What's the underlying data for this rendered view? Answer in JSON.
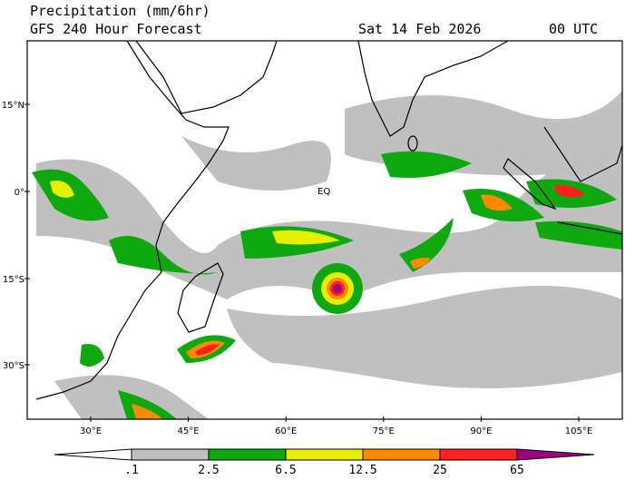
{
  "header": {
    "title": "Precipitation (mm/6hr)",
    "subtitle": "GFS 240 Hour Forecast",
    "date": "Sat 14 Feb 2026",
    "time": "00 UTC"
  },
  "map": {
    "lat_labels": [
      "15°N",
      "0°",
      "15°S",
      "30°S"
    ],
    "lon_labels": [
      "30°E",
      "45°E",
      "60°E",
      "75°E",
      "90°E",
      "105°E"
    ],
    "annotation": "EQ"
  },
  "colorbar": {
    "labels": [
      ".1",
      "2.5",
      "6.5",
      "12.5",
      "25",
      "65"
    ],
    "colors": [
      "#ffffff",
      "#c0c0c0",
      "#10a810",
      "#e8f000",
      "#ff8a00",
      "#ff2020",
      "#a00080"
    ]
  }
}
